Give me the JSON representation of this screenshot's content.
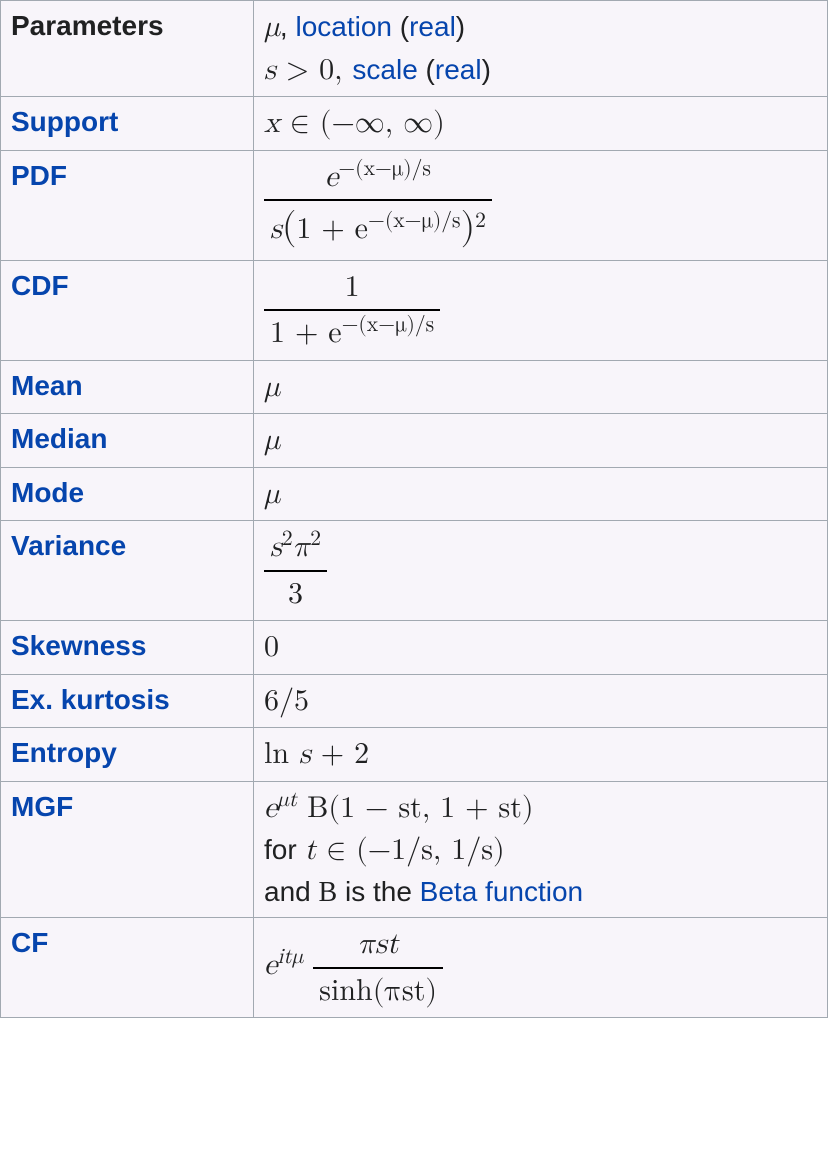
{
  "colors": {
    "background": "#f8f5fa",
    "border": "#a2a9b1",
    "link": "#0645ad",
    "text": "#202122"
  },
  "rows": {
    "parameters": {
      "label": "Parameters",
      "is_link": false
    },
    "support": {
      "label": "Support",
      "is_link": true
    },
    "pdf": {
      "label": "PDF",
      "is_link": true
    },
    "cdf": {
      "label": "CDF",
      "is_link": true
    },
    "mean": {
      "label": "Mean",
      "is_link": true
    },
    "median": {
      "label": "Median",
      "is_link": true
    },
    "mode": {
      "label": "Mode",
      "is_link": true
    },
    "variance": {
      "label": "Variance",
      "is_link": true
    },
    "skewness": {
      "label": "Skewness",
      "is_link": true
    },
    "exkurtosis": {
      "label": "Ex. kurtosis",
      "is_link": true
    },
    "entropy": {
      "label": "Entropy",
      "is_link": true
    },
    "mgf": {
      "label": "MGF",
      "is_link": true
    },
    "cf": {
      "label": "CF",
      "is_link": true
    }
  },
  "params": {
    "mu_sym": "μ",
    "comma": ", ",
    "location_link": "location",
    "open_paren": " (",
    "real_link": "real",
    "close_paren": ")",
    "s_sym": "s",
    "gt0": " > 0,",
    "scale_link": "scale"
  },
  "support": {
    "x": "x",
    "in": " ∈ ",
    "interval": "(−∞, ∞)"
  },
  "pdf": {
    "num_e": "e",
    "num_exp": "−(x−μ)/s",
    "den_s": "s",
    "den_open": "(",
    "den_1plus": "1 + e",
    "den_exp": "−(x−μ)/s",
    "den_close": ")",
    "den_sq": "2"
  },
  "cdf": {
    "num": "1",
    "den_1plus": "1 + e",
    "den_exp": "−(x−μ)/s"
  },
  "mean_val": "μ",
  "median_val": "μ",
  "mode_val": "μ",
  "variance": {
    "num": "s",
    "num_sup": "2",
    "pi": "π",
    "pi_sup": "2",
    "den": "3"
  },
  "skewness_val": "0",
  "exkurt_val": "6/5",
  "entropy": {
    "ln": "ln ",
    "s": "s",
    "plus2": " + 2"
  },
  "mgf": {
    "e": "e",
    "e_sup": "μt",
    "sp": " ",
    "B": "B",
    "args": "(1 − st, 1 + st)",
    "line2_for": "for ",
    "t": "t",
    "in": " ∈ ",
    "range": "(−1/s, 1/s)",
    "line3_and": "and ",
    "line3_B": "B",
    "line3_is": " is the ",
    "beta_link": "Beta function"
  },
  "cf": {
    "e": "e",
    "e_sup": "itμ",
    "num": "πst",
    "den_sinh": "sinh",
    "den_arg": "(πst)"
  }
}
